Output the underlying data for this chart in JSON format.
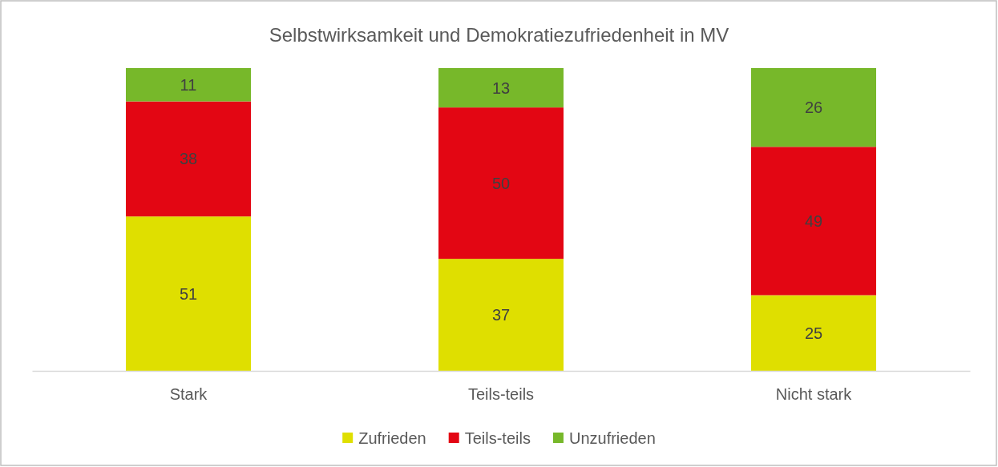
{
  "chart_data": {
    "type": "bar",
    "title": "Selbstwirksamkeit und Demokratiezufriedenheit in MV",
    "categories": [
      "Stark",
      "Teils-teils",
      "Nicht stark"
    ],
    "stacked": true,
    "ylim": [
      0,
      100
    ],
    "tick_labels": "x",
    "data_labels": true,
    "legend": "bottom",
    "series": [
      {
        "name": "Zufrieden",
        "color": "#dfdf00",
        "values": [
          51,
          37,
          25
        ]
      },
      {
        "name": "Teils-teils",
        "color": "#e30613",
        "values": [
          38,
          50,
          49
        ]
      },
      {
        "name": "Unzufrieden",
        "color": "#77b82a",
        "values": [
          11,
          13,
          26
        ]
      }
    ]
  }
}
